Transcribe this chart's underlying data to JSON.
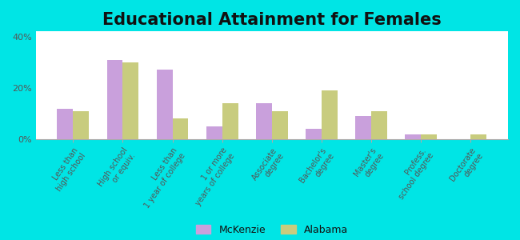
{
  "title": "Educational Attainment for Females",
  "categories": [
    "Less than\nhigh school",
    "High school\nor equiv.",
    "Less than\n1 year of college",
    "1 or more\nyears of college",
    "Associate\ndegree",
    "Bachelor's\ndegree",
    "Master's\ndegree",
    "Profess.\nschool degree",
    "Doctorate\ndegree"
  ],
  "mckenzie": [
    12,
    31,
    27,
    5,
    14,
    4,
    9,
    2,
    0
  ],
  "alabama": [
    11,
    30,
    8,
    14,
    11,
    19,
    11,
    2,
    2
  ],
  "mckenzie_color": "#c9a0dc",
  "alabama_color": "#c8cc7e",
  "bg_outer": "#00e5e5",
  "ylabel_ticks": [
    "0%",
    "20%",
    "40%"
  ],
  "yticks": [
    0,
    20,
    40
  ],
  "ylim": [
    0,
    42
  ],
  "legend_mckenzie": "McKenzie",
  "legend_alabama": "Alabama",
  "title_fontsize": 15,
  "tick_label_fontsize": 7
}
